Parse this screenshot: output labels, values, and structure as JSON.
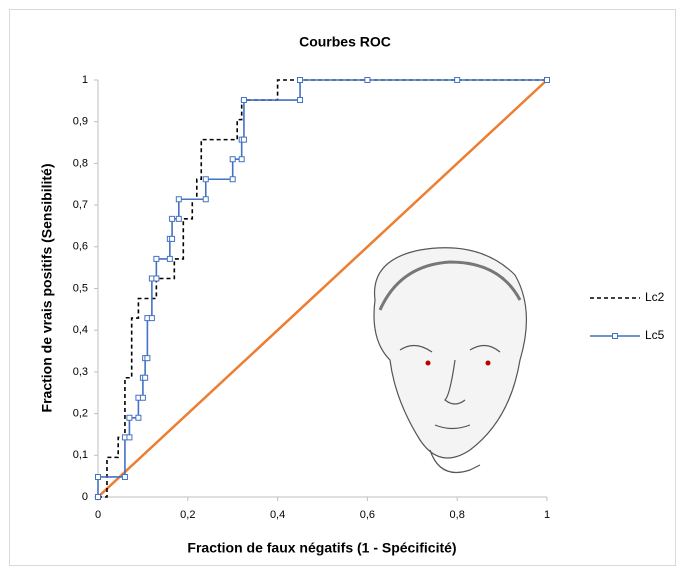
{
  "chart_data": {
    "type": "line",
    "title": "Courbes ROC",
    "x_label": "Fraction de faux négatifs (1 - Spécificité)",
    "y_label": "Fraction de vrais positifs  (Sensibilité)",
    "xlim": [
      0,
      1
    ],
    "ylim": [
      0,
      1
    ],
    "xticks": [
      0,
      {
        "value": 0.2,
        "label": "0,2"
      },
      {
        "value": 0.4,
        "label": "0,4"
      },
      {
        "value": 0.6,
        "label": "0,6"
      },
      {
        "value": 0.8,
        "label": "0,8"
      },
      1
    ],
    "yticks": [
      0,
      {
        "value": 0.1,
        "label": "0,1"
      },
      {
        "value": 0.2,
        "label": "0,2"
      },
      {
        "value": 0.3,
        "label": "0,3"
      },
      {
        "value": 0.4,
        "label": "0,4"
      },
      {
        "value": 0.5,
        "label": "0,5"
      },
      {
        "value": 0.6,
        "label": "0,6"
      },
      {
        "value": 0.7,
        "label": "0,7"
      },
      {
        "value": 0.8,
        "label": "0,8"
      },
      {
        "value": 0.9,
        "label": "0,9"
      },
      1
    ],
    "series": [
      {
        "name": "Lc2",
        "color": "#000000",
        "dashed": true,
        "markers": false,
        "x": [
          0,
          0.02,
          0.02,
          0.045,
          0.045,
          0.06,
          0.06,
          0.075,
          0.075,
          0.09,
          0.09,
          0.13,
          0.13,
          0.17,
          0.17,
          0.19,
          0.19,
          0.21,
          0.21,
          0.22,
          0.22,
          0.23,
          0.23,
          0.31,
          0.31,
          0.32,
          0.32,
          0.4,
          0.4,
          1
        ],
        "values": [
          0,
          0,
          0.095,
          0.095,
          0.143,
          0.143,
          0.286,
          0.286,
          0.429,
          0.429,
          0.476,
          0.476,
          0.524,
          0.524,
          0.571,
          0.571,
          0.667,
          0.667,
          0.714,
          0.714,
          0.762,
          0.762,
          0.857,
          0.857,
          0.905,
          0.905,
          0.952,
          0.952,
          1,
          1
        ]
      },
      {
        "name": "Lc5",
        "color": "#4472c4",
        "dashed": false,
        "markers": true,
        "x": [
          0,
          0,
          0.06,
          0.06,
          0.07,
          0.07,
          0.09,
          0.09,
          0.1,
          0.1,
          0.105,
          0.105,
          0.11,
          0.11,
          0.12,
          0.12,
          0.13,
          0.13,
          0.16,
          0.16,
          0.165,
          0.165,
          0.18,
          0.18,
          0.24,
          0.24,
          0.3,
          0.3,
          0.32,
          0.32,
          0.325,
          0.325,
          0.45,
          0.45,
          0.6,
          0.8,
          1
        ],
        "values": [
          0,
          0.048,
          0.048,
          0.143,
          0.143,
          0.19,
          0.19,
          0.238,
          0.238,
          0.286,
          0.286,
          0.333,
          0.333,
          0.429,
          0.429,
          0.524,
          0.524,
          0.571,
          0.571,
          0.619,
          0.619,
          0.667,
          0.667,
          0.714,
          0.714,
          0.762,
          0.762,
          0.81,
          0.81,
          0.857,
          0.857,
          0.952,
          0.952,
          1,
          1,
          1,
          1
        ]
      }
    ],
    "reference_line": {
      "color": "#ed7d31",
      "x": [
        0,
        1
      ],
      "values": [
        0,
        1
      ]
    }
  }
}
